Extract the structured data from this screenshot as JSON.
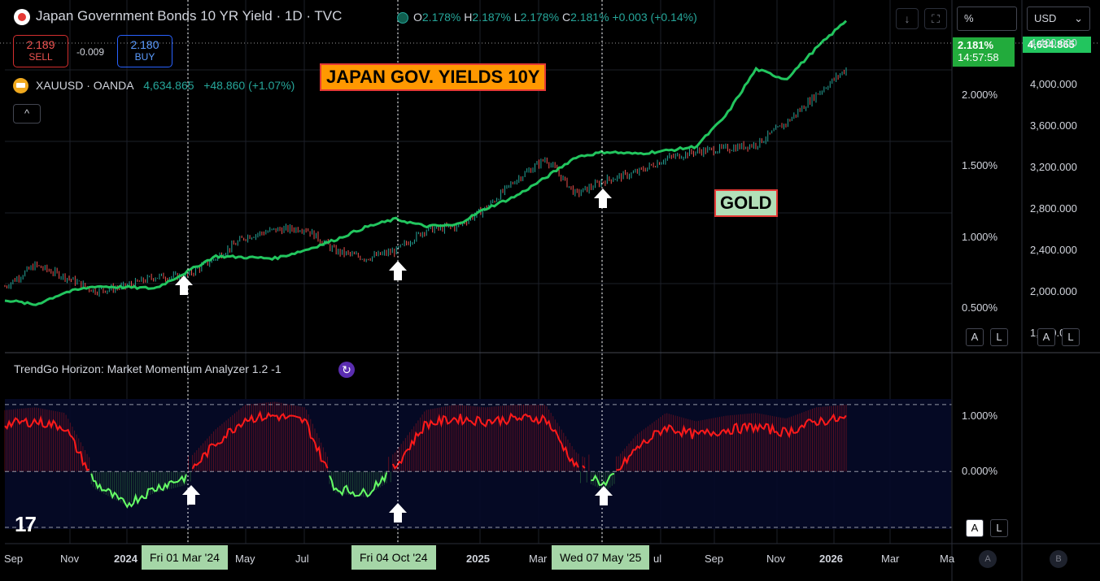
{
  "header": {
    "title": "Japan Government Bonds 10 YR Yield · 1D · TVC",
    "ohlc": [
      {
        "k": "O",
        "v": "2.178%"
      },
      {
        "k": "H",
        "v": "2.187%"
      },
      {
        "k": "L",
        "v": "2.178%"
      },
      {
        "k": "C",
        "v": "2.181%"
      },
      {
        "k": "",
        "v": "+0.003 (+0.14%)"
      }
    ],
    "sell_price": "2.189",
    "sell_label": "SELL",
    "spread": "-0.009",
    "buy_price": "2.180",
    "buy_label": "BUY",
    "overlay_symbol": "XAUUSD · OANDA",
    "overlay_price": "4,634.865",
    "overlay_change": "+48.860 (+1.07%)",
    "collapse_glyph": "^"
  },
  "annotations": {
    "japan_label": "JAPAN GOV. YIELDS 10Y",
    "gold_label": "GOLD"
  },
  "indicator": {
    "title": "TrendGo Horizon: Market Momentum Analyzer 1.2 -1"
  },
  "right_axes": {
    "left_axis_mode": "%",
    "right_axis_currency": "USD",
    "yield_tag": "2.181%",
    "yield_tag_time": "14:57:58",
    "gold_tag": "4,634.865",
    "yield_ticks": [
      "2.000%",
      "1.500%",
      "1.000%",
      "0.500%"
    ],
    "gold_ticks": [
      "4,400.000",
      "4,000.000",
      "3,600.000",
      "3,200.000",
      "2,800.000",
      "2,400.000",
      "2,000.000",
      "1,600.000"
    ],
    "ind_ticks": [
      "1.000%",
      "0.000%"
    ],
    "a_label": "A",
    "l_label": "L",
    "bottom_a": "A",
    "bottom_b": "B"
  },
  "time_axis": {
    "labels": [
      "Sep",
      "Nov",
      "2024",
      "May",
      "Jul",
      "2025",
      "Mar",
      "ul",
      "Sep",
      "Nov",
      "2026",
      "Mar",
      "Ma"
    ],
    "crosshair_dates": [
      "Fri 01 Mar '24",
      "Fri 04 Oct '24",
      "Wed 07 May '25"
    ]
  },
  "colors": {
    "gold_line": "#22c55e",
    "yield_up": "#26a69a",
    "yield_down": "#ef5350",
    "momentum_pos": "#ff1a1a",
    "momentum_neg": "#66ff66",
    "japan_box": "#ff9800",
    "gold_box": "#b2dfb8"
  },
  "chart_data": {
    "type": "line",
    "series": [
      {
        "name": "XAUUSD · OANDA",
        "x": [
          "2023-09",
          "2023-10",
          "2023-11",
          "2023-12",
          "2024-01",
          "2024-02",
          "2024-03",
          "2024-04",
          "2024-05",
          "2024-06",
          "2024-07",
          "2024-08",
          "2024-09",
          "2024-10",
          "2024-11",
          "2024-12",
          "2025-01",
          "2025-02",
          "2025-03",
          "2025-04",
          "2025-05",
          "2025-06",
          "2025-07",
          "2025-08",
          "2025-09",
          "2025-10",
          "2025-11",
          "2025-12",
          "2026-01"
        ],
        "values": [
          1920,
          1870,
          1990,
          2050,
          2040,
          2030,
          2180,
          2340,
          2330,
          2320,
          2400,
          2500,
          2620,
          2700,
          2630,
          2640,
          2800,
          2920,
          3100,
          3300,
          3350,
          3330,
          3360,
          3400,
          3700,
          4150,
          4050,
          4350,
          4620
        ]
      },
      {
        "name": "Japan Government Bonds 10 YR Yield",
        "x": [
          "2023-09",
          "2023-10",
          "2023-11",
          "2023-12",
          "2024-01",
          "2024-02",
          "2024-03",
          "2024-04",
          "2024-05",
          "2024-06",
          "2024-07",
          "2024-08",
          "2024-09",
          "2024-10",
          "2024-11",
          "2024-12",
          "2025-01",
          "2025-02",
          "2025-03",
          "2025-04",
          "2025-05",
          "2025-06",
          "2025-07",
          "2025-08",
          "2025-09",
          "2025-10",
          "2025-11",
          "2025-12",
          "2026-01"
        ],
        "values": [
          0.65,
          0.8,
          0.72,
          0.62,
          0.65,
          0.72,
          0.72,
          0.85,
          1.0,
          1.05,
          1.06,
          0.9,
          0.85,
          0.9,
          1.05,
          1.07,
          1.2,
          1.4,
          1.55,
          1.3,
          1.4,
          1.45,
          1.55,
          1.6,
          1.62,
          1.65,
          1.8,
          2.0,
          2.18
        ]
      },
      {
        "name": "TrendGo Horizon: Market Momentum Analyzer 1.2 -1",
        "x": [
          "2023-09",
          "2023-10",
          "2023-11",
          "2023-12",
          "2024-01",
          "2024-02",
          "2024-03",
          "2024-04",
          "2024-05",
          "2024-06",
          "2024-07",
          "2024-08",
          "2024-09",
          "2024-10",
          "2024-11",
          "2024-12",
          "2025-01",
          "2025-02",
          "2025-03",
          "2025-04",
          "2025-05",
          "2025-06",
          "2025-07",
          "2025-08",
          "2025-09",
          "2025-10",
          "2025-11",
          "2025-12",
          "2026-01"
        ],
        "values": [
          0.85,
          0.9,
          0.8,
          -0.2,
          -0.6,
          -0.3,
          -0.1,
          0.5,
          0.95,
          1.0,
          0.9,
          -0.3,
          -0.4,
          0.1,
          0.85,
          0.95,
          0.9,
          0.95,
          0.95,
          0.1,
          -0.25,
          0.4,
          0.8,
          0.65,
          0.75,
          0.8,
          0.7,
          0.9,
          0.95
        ]
      }
    ],
    "y_left_ticks": [
      "2.000%",
      "1.500%",
      "1.000%",
      "0.500%"
    ],
    "y_right_ticks": [
      "4,400.000",
      "4,000.000",
      "3,600.000",
      "3,200.000",
      "2,800.000",
      "2,400.000",
      "2,000.000",
      "1,600.000"
    ],
    "ylim_gold": [
      1400,
      4700
    ],
    "ylim_yield": [
      0.18,
      2.58
    ],
    "ylim_indicator": [
      -1.0,
      1.3
    ],
    "grid": true
  }
}
